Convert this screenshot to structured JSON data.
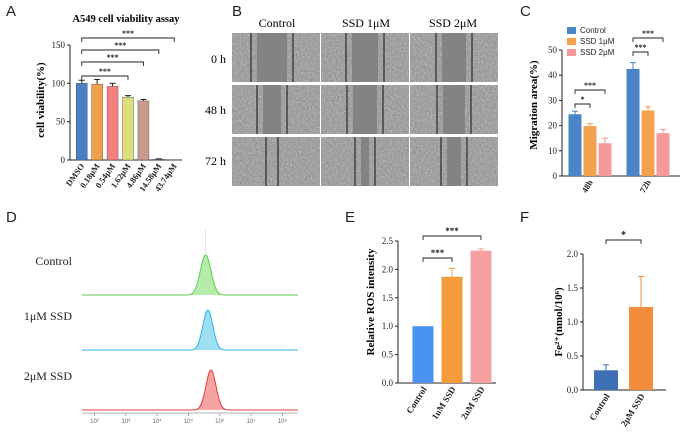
{
  "panel_letters": [
    "A",
    "B",
    "C",
    "D",
    "E",
    "F"
  ],
  "chart_data": [
    {
      "panel": "A",
      "type": "bar",
      "title": "A549 cell viability assay",
      "xlabel": "",
      "ylabel": "cell viability(%)",
      "ylim": [
        0,
        150
      ],
      "yticks": [
        0,
        50,
        100,
        150
      ],
      "categories": [
        "DMSO",
        "0.18μM",
        "0.54μM",
        "1.62μM",
        "4.86μM",
        "14.58μM",
        "43.74μM"
      ],
      "values": [
        100,
        99,
        96,
        82,
        77,
        1,
        0.5
      ],
      "errors": [
        4,
        6,
        4,
        2,
        2,
        0.5,
        0.3
      ],
      "colors": [
        "#4a7fc1",
        "#f2a04a",
        "#f47f7f",
        "#dde07a",
        "#c99a8f",
        "#b07aa1",
        "#888888"
      ],
      "significance": [
        {
          "from": 0,
          "to": 3,
          "label": "***"
        },
        {
          "from": 0,
          "to": 4,
          "label": "***"
        },
        {
          "from": 0,
          "to": 5,
          "label": "***"
        },
        {
          "from": 0,
          "to": 6,
          "label": "***"
        }
      ]
    },
    {
      "panel": "B",
      "type": "image_grid",
      "columns": [
        "Control",
        "SSD 1μM",
        "SSD 2μM"
      ],
      "rows": [
        "0 h",
        "48 h",
        "72 h"
      ]
    },
    {
      "panel": "C",
      "type": "bar",
      "xlabel": "",
      "ylabel": "Migration area(%)",
      "ylim": [
        0,
        50
      ],
      "yticks": [
        0,
        10,
        20,
        30,
        40,
        50
      ],
      "categories": [
        "48h",
        "72h"
      ],
      "series": [
        {
          "name": "Control",
          "values": [
            24.5,
            42.5
          ],
          "errors": [
            1.2,
            2.5
          ],
          "color": "#4a86c5"
        },
        {
          "name": "SSD 1μM",
          "values": [
            19.8,
            26.0
          ],
          "errors": [
            1.0,
            1.5
          ],
          "color": "#f4a14f"
        },
        {
          "name": "SSD 2μM",
          "values": [
            13.0,
            17.0
          ],
          "errors": [
            2.0,
            1.5
          ],
          "color": "#f59a9a"
        }
      ],
      "legend": "top-left",
      "significance": [
        {
          "group": 0,
          "from": 0,
          "to": 1,
          "label": "*"
        },
        {
          "group": 0,
          "from": 0,
          "to": 2,
          "label": "***"
        },
        {
          "group": 1,
          "from": 0,
          "to": 1,
          "label": "***"
        },
        {
          "group": 1,
          "from": 0,
          "to": 2,
          "label": "***"
        }
      ]
    },
    {
      "panel": "D",
      "type": "histogram",
      "rows": [
        {
          "label": "Control",
          "fill": "#b5ecaa",
          "stroke": "#5dcf4b",
          "peak": 5.55,
          "sd": 0.17
        },
        {
          "label": "1μM SSD",
          "fill": "#9fdff4",
          "stroke": "#2bb4e6",
          "peak": 5.62,
          "sd": 0.16
        },
        {
          "label": "2μM SSD",
          "fill": "#f5a3a3",
          "stroke": "#e53b3b",
          "peak": 5.72,
          "sd": 0.16
        }
      ],
      "xticks": [
        "10²",
        "10³",
        "10⁴",
        "10⁵",
        "10⁶",
        "10⁷",
        "10⁸"
      ],
      "xtick_values": [
        2,
        3,
        4,
        5,
        6,
        7,
        8
      ],
      "xlim": [
        1.6,
        8.5
      ]
    },
    {
      "panel": "E",
      "type": "bar",
      "xlabel": "",
      "ylabel": "Relative ROS intensity",
      "ylim": [
        0,
        2.5
      ],
      "yticks": [
        "0.0",
        "0.5",
        "1.0",
        "1.5",
        "2.0",
        "2.5"
      ],
      "ytick_values": [
        0,
        0.5,
        1.0,
        1.5,
        2.0,
        2.5
      ],
      "categories": [
        "Control",
        "1uM SSD",
        "2uM SSD"
      ],
      "values": [
        1.0,
        1.87,
        2.33
      ],
      "errors": [
        0,
        0.15,
        0.03
      ],
      "colors": [
        "#4a93f0",
        "#f49c3c",
        "#f6a1a1"
      ],
      "significance": [
        {
          "from": 0,
          "to": 1,
          "label": "***"
        },
        {
          "from": 0,
          "to": 2,
          "label": "***"
        }
      ]
    },
    {
      "panel": "F",
      "type": "bar",
      "xlabel": "",
      "ylabel": "Fe²⁺(nmol/10⁶)",
      "ylim": [
        0,
        2.0
      ],
      "yticks": [
        "0.0",
        "0.5",
        "1.0",
        "1.5",
        "2.0"
      ],
      "ytick_values": [
        0,
        0.5,
        1.0,
        1.5,
        2.0
      ],
      "categories": [
        "Control",
        "2μM SSD"
      ],
      "values": [
        0.29,
        1.22
      ],
      "errors": [
        0.08,
        0.45
      ],
      "colors": [
        "#3f6fb5",
        "#f28d3c"
      ],
      "significance": [
        {
          "from": 0,
          "to": 1,
          "label": "*"
        }
      ]
    }
  ]
}
